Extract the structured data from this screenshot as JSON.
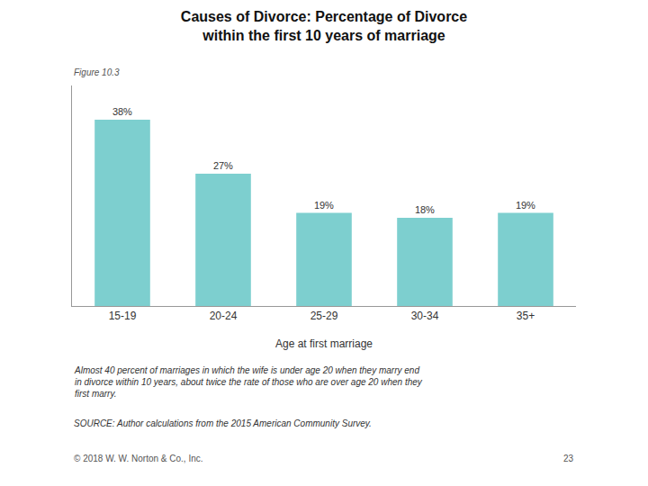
{
  "chart_data": {
    "type": "bar",
    "title": "Causes of Divorce: Percentage of Divorce",
    "subtitle": "within the first 10 years of marriage",
    "categories": [
      "15-19",
      "20-24",
      "25-29",
      "30-34",
      "35+"
    ],
    "values": [
      38,
      27,
      19,
      18,
      19
    ],
    "value_labels": [
      "38%",
      "27%",
      "19%",
      "18%",
      "19%"
    ],
    "data_labels": true,
    "color": "#7dcfcf",
    "xlabel": "Age at first marriage",
    "ylim": [
      0,
      45
    ],
    "tick_labels": "x",
    "grid": false,
    "annotations": [
      "Figure 10.3",
      "Almost 40 percent of marriages in which the wife is under age 20 when they marry end\nin divorce within 10 years, about twice the rate of those who are over age 20 when they\nfirst marry.",
      "SOURCE: Author calculations from the 2015 American Community Survey.",
      "© 2018 W. W. Norton & Co., Inc.",
      "23"
    ]
  }
}
